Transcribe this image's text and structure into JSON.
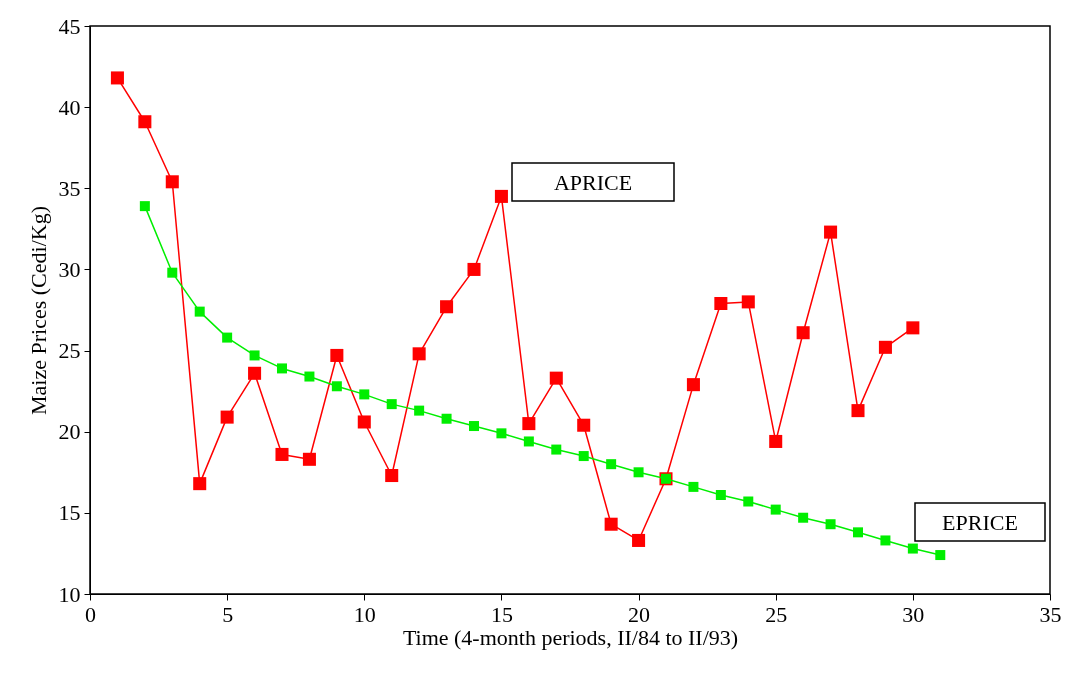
{
  "chart_data": {
    "type": "line",
    "xlabel": "Time (4-month periods, II/84 to II/93)",
    "ylabel": "Maize Prices (Cedi/Kg)",
    "xlim": [
      0,
      35
    ],
    "xticks": [
      0,
      5,
      10,
      15,
      20,
      25,
      30,
      35
    ],
    "ylim": [
      10,
      45
    ],
    "yticks": [
      10,
      15,
      20,
      25,
      30,
      35,
      40,
      45
    ],
    "grid": false,
    "marker": "square",
    "line_style": "solid",
    "series": [
      {
        "name": "APRICE",
        "color": "#ff0000",
        "x": [
          1,
          2,
          3,
          4,
          5,
          6,
          7,
          8,
          9,
          10,
          11,
          12,
          13,
          14,
          15,
          16,
          17,
          18,
          19,
          20,
          21,
          22,
          23,
          24,
          25,
          26,
          27,
          28,
          29,
          30
        ],
        "values": [
          41.8,
          39.1,
          35.4,
          16.8,
          20.9,
          23.6,
          18.6,
          18.3,
          24.7,
          20.6,
          17.3,
          24.8,
          27.7,
          30.0,
          34.5,
          20.5,
          23.3,
          20.4,
          14.3,
          13.3,
          17.1,
          22.9,
          27.9,
          28.0,
          19.4,
          26.1,
          32.3,
          21.3,
          25.2,
          26.4
        ]
      },
      {
        "name": "EPRICE",
        "color": "#00ee00",
        "x": [
          2,
          3,
          4,
          5,
          6,
          7,
          8,
          9,
          10,
          11,
          12,
          13,
          14,
          15,
          16,
          17,
          18,
          19,
          20,
          21,
          22,
          23,
          24,
          25,
          26,
          27,
          28,
          29,
          30,
          31
        ],
        "values": [
          33.9,
          29.8,
          27.4,
          25.8,
          24.7,
          23.9,
          23.4,
          22.8,
          22.3,
          21.7,
          21.3,
          20.8,
          20.35,
          19.9,
          19.4,
          18.9,
          18.5,
          18.0,
          17.5,
          17.1,
          16.6,
          16.1,
          15.7,
          15.2,
          14.7,
          14.3,
          13.8,
          13.3,
          12.8,
          12.4
        ]
      }
    ]
  }
}
